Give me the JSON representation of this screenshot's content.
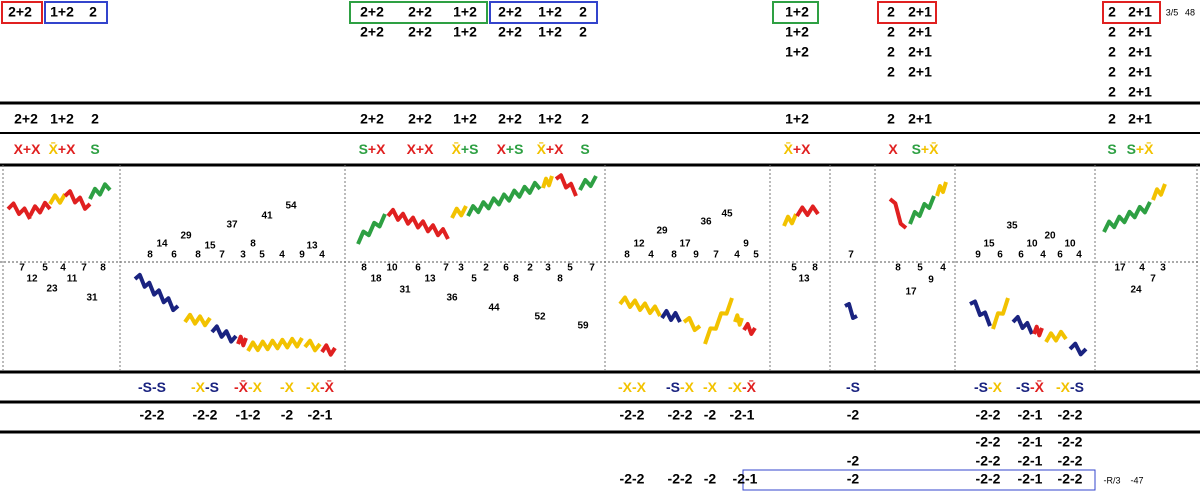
{
  "colors": {
    "red": "#e02020",
    "yellow": "#f2c200",
    "green": "#2ea043",
    "navy": "#1a2380",
    "blue": "#3344cc"
  },
  "header_row": [
    "2+2",
    "1+2",
    "2",
    "2+2",
    "2+2",
    "1+2",
    "2+2",
    "1+2",
    "2",
    "1+2",
    "2",
    "2+1",
    "2",
    "2+1"
  ],
  "top_rows": [
    [
      "2+2",
      "2+2",
      "1+2",
      "2+2",
      "1+2",
      "2",
      "1+2",
      "2",
      "2+1",
      "2",
      "2+1"
    ],
    [
      "1+2",
      "2",
      "2+1",
      "2",
      "2+1"
    ],
    [
      "2",
      "2+1",
      "2",
      "2+1"
    ],
    [
      "2",
      "2+1"
    ]
  ],
  "summary_row": [
    "2+2",
    "1+2",
    "2",
    "2+2",
    "2+2",
    "1+2",
    "2+2",
    "1+2",
    "2",
    "1+2",
    "2",
    "2+1",
    "2",
    "2+1"
  ],
  "signal_row": [
    [
      {
        "text": "X+X",
        "color": "#e02020"
      }
    ],
    [
      {
        "text": "X̄",
        "color": "#f2c200"
      },
      {
        "text": "+X",
        "color": "#e02020"
      }
    ],
    [
      {
        "text": "S",
        "color": "#2ea043"
      }
    ],
    [
      {
        "text": "S",
        "color": "#2ea043"
      },
      {
        "text": "+X",
        "color": "#e02020"
      }
    ],
    [
      {
        "text": "X+X",
        "color": "#e02020"
      }
    ],
    [
      {
        "text": "X̄",
        "color": "#f2c200"
      },
      {
        "text": "+S",
        "color": "#2ea043"
      }
    ],
    [
      {
        "text": "X",
        "color": "#e02020"
      },
      {
        "text": "+S",
        "color": "#2ea043"
      }
    ],
    [
      {
        "text": "X̄",
        "color": "#f2c200"
      },
      {
        "text": "+X",
        "color": "#e02020"
      }
    ],
    [
      {
        "text": "S",
        "color": "#2ea043"
      }
    ],
    [
      {
        "text": "X̄",
        "color": "#f2c200"
      },
      {
        "text": "+X",
        "color": "#e02020"
      }
    ],
    [
      {
        "text": "X",
        "color": "#e02020"
      }
    ],
    [
      {
        "text": "S",
        "color": "#2ea043"
      },
      {
        "text": "+X̄",
        "color": "#f2c200"
      }
    ],
    [
      {
        "text": "S",
        "color": "#2ea043"
      }
    ],
    [
      {
        "text": "S",
        "color": "#2ea043"
      },
      {
        "text": "+X̄",
        "color": "#f2c200"
      }
    ]
  ],
  "panel_numbers": [
    [
      7,
      12,
      5,
      23,
      4,
      11,
      7,
      31,
      8
    ],
    [
      8,
      14,
      6,
      29,
      8,
      15,
      7,
      37,
      3,
      8,
      5,
      41,
      4,
      54,
      9,
      13,
      4
    ],
    [
      8,
      18,
      10,
      31,
      6,
      13,
      7,
      36,
      3,
      5,
      2,
      44,
      6,
      8,
      2,
      52,
      3,
      8,
      5,
      59,
      7
    ],
    [
      8,
      12,
      4,
      29,
      8,
      17,
      9,
      36,
      7,
      45,
      4,
      9,
      5
    ],
    [
      5,
      13,
      8
    ],
    [
      7
    ],
    [
      8,
      17,
      5,
      9,
      4
    ],
    [
      9,
      15,
      6,
      35,
      6,
      10,
      4,
      20,
      6,
      10,
      4
    ],
    [
      17,
      24,
      4,
      7,
      3
    ]
  ],
  "pattern_row": [
    [
      {
        "text": "-S-S",
        "color": "#1a2380"
      }
    ],
    [
      {
        "text": "-X",
        "color": "#f2c200"
      },
      {
        "text": "-S",
        "color": "#1a2380"
      }
    ],
    [
      {
        "text": "-X̄",
        "color": "#e02020"
      },
      {
        "text": "-X",
        "color": "#f2c200"
      }
    ],
    [
      {
        "text": "-X",
        "color": "#f2c200"
      }
    ],
    [
      {
        "text": "-X",
        "color": "#f2c200"
      },
      {
        "text": "-X̄",
        "color": "#e02020"
      }
    ],
    [
      {
        "text": "-X-X",
        "color": "#f2c200"
      }
    ],
    [
      {
        "text": "-S",
        "color": "#1a2380"
      },
      {
        "text": "-X",
        "color": "#f2c200"
      }
    ],
    [
      {
        "text": "-X",
        "color": "#f2c200"
      }
    ],
    [
      {
        "text": "-X",
        "color": "#f2c200"
      },
      {
        "text": "-X̄",
        "color": "#e02020"
      }
    ],
    [
      {
        "text": "-S",
        "color": "#1a2380"
      }
    ],
    [
      {
        "text": "-S",
        "color": "#1a2380"
      },
      {
        "text": "-X",
        "color": "#f2c200"
      }
    ],
    [
      {
        "text": "-S",
        "color": "#1a2380"
      },
      {
        "text": "-X̄",
        "color": "#e02020"
      }
    ],
    [
      {
        "text": "-X",
        "color": "#f2c200"
      },
      {
        "text": "-S",
        "color": "#1a2380"
      }
    ]
  ],
  "score_rows": [
    [
      "-2-2",
      "-2-2",
      "-1-2",
      "-2",
      "-2-1",
      "-2-2",
      "-2-2",
      "-2",
      "-2-1",
      "-2",
      "-2-2",
      "-2-1",
      "-2-2"
    ],
    [
      "-2-2",
      "-2-1",
      "-2-2"
    ],
    [
      "-2",
      "-2-2",
      "-2-1",
      "-2-2"
    ],
    [
      "-2-2",
      "-2-2",
      "-2",
      "-2-1",
      "-2",
      "-2-2",
      "-2-1",
      "-2-2"
    ]
  ],
  "meta": {
    "ratio": "3/5",
    "count": "48",
    "rank": "-R/3",
    "total": "-47"
  }
}
